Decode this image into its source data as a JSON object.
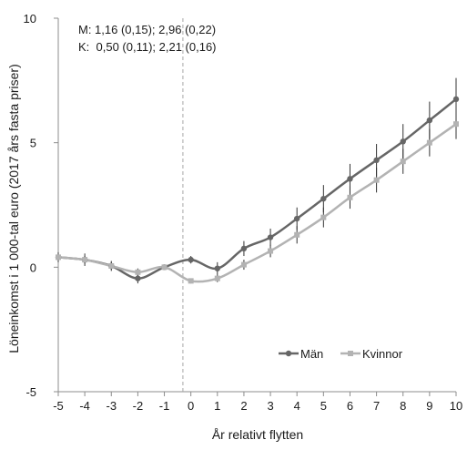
{
  "chart_data": {
    "type": "line",
    "title": "",
    "xlabel": "År relativt flytten",
    "ylabel": "Löneinkomst i 1 000-tal euro (2017 års fasta priser)",
    "xlim": [
      -5,
      10
    ],
    "ylim": [
      -5,
      10
    ],
    "xticks": [
      "-5",
      "-4",
      "-3",
      "-2",
      "-1",
      "0",
      "1",
      "2",
      "3",
      "4",
      "5",
      "6",
      "7",
      "8",
      "9",
      "10"
    ],
    "yticks": [
      "-5",
      "0",
      "5",
      "10"
    ],
    "annotations": [
      "M: 1,16 (0,15); 2,96 (0,22)",
      "K:  0,50 (0,11); 2,21 (0,16)"
    ],
    "reference_line_x": -0.3,
    "legend_position": "bottom-right",
    "grid": false,
    "x": [
      -5,
      -4,
      -3,
      -2,
      -1,
      0,
      1,
      2,
      3,
      4,
      5,
      6,
      7,
      8,
      9,
      10
    ],
    "series": [
      {
        "name": "Män",
        "color": "#666666",
        "marker": "circle",
        "values": [
          0.4,
          0.3,
          0.05,
          -0.45,
          0.0,
          0.3,
          -0.05,
          0.75,
          1.2,
          1.95,
          2.75,
          3.55,
          4.3,
          5.05,
          5.9,
          6.75
        ],
        "errors": [
          0.2,
          0.25,
          0.2,
          0.2,
          0.0,
          0.15,
          0.25,
          0.3,
          0.35,
          0.45,
          0.55,
          0.6,
          0.65,
          0.7,
          0.75,
          0.85
        ]
      },
      {
        "name": "Kvinnor",
        "color": "#b3b3b3",
        "marker": "square",
        "values": [
          0.4,
          0.3,
          0.05,
          -0.2,
          0.0,
          -0.55,
          -0.45,
          0.1,
          0.65,
          1.3,
          2.0,
          2.8,
          3.5,
          4.25,
          5.0,
          5.75
        ],
        "errors": [
          0.15,
          0.15,
          0.15,
          0.15,
          0.0,
          0.1,
          0.15,
          0.2,
          0.25,
          0.35,
          0.4,
          0.45,
          0.5,
          0.5,
          0.55,
          0.6
        ]
      }
    ]
  }
}
